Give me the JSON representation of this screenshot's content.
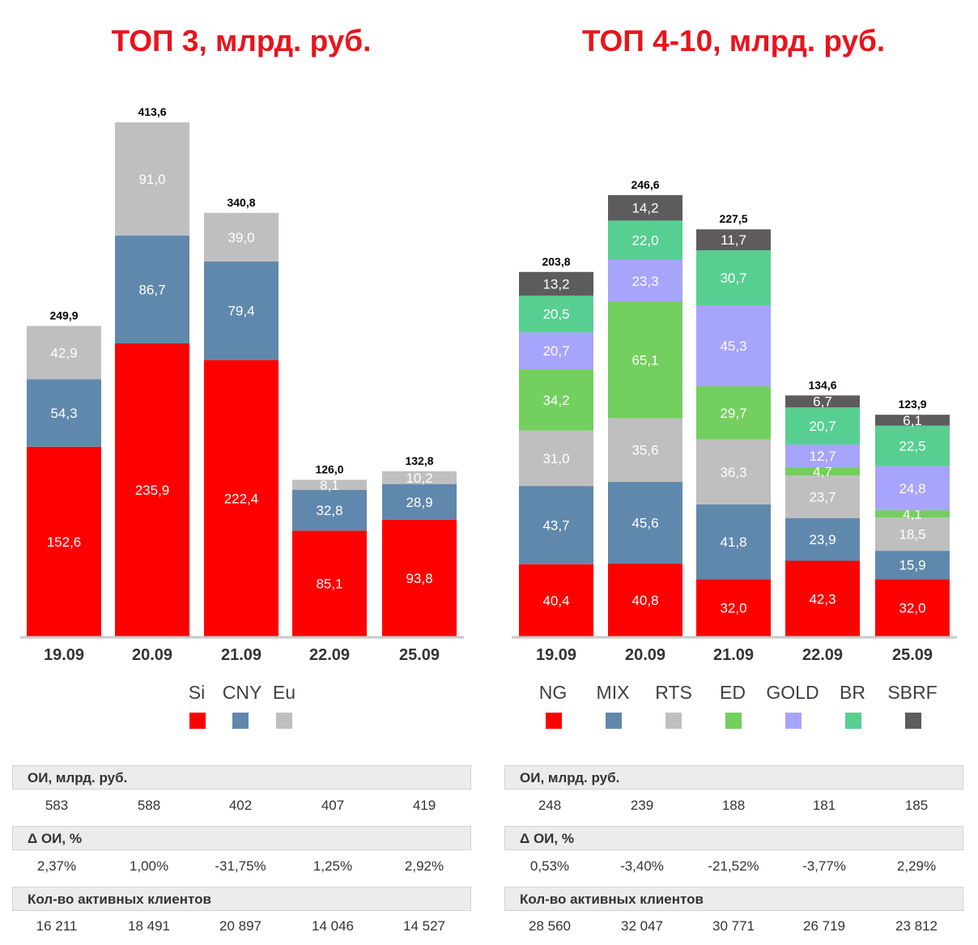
{
  "chart_data": [
    {
      "type": "bar",
      "stacked": true,
      "title": "ТОП 3, млрд. руб.",
      "categories": [
        "19.09",
        "20.09",
        "21.09",
        "22.09",
        "25.09"
      ],
      "series": [
        {
          "name": "Si",
          "color": "#ff0000",
          "values": [
            152.6,
            235.9,
            222.4,
            85.1,
            93.8
          ],
          "labels": [
            "152,6",
            "235,9",
            "222,4",
            "85,1",
            "93,8"
          ]
        },
        {
          "name": "CNY",
          "color": "#6088ad",
          "values": [
            54.3,
            86.7,
            79.4,
            32.8,
            28.9
          ],
          "labels": [
            "54,3",
            "86,7",
            "79,4",
            "32,8",
            "28,9"
          ]
        },
        {
          "name": "Eu",
          "color": "#c0bfbf",
          "values": [
            42.9,
            91.0,
            39.0,
            8.1,
            10.2
          ],
          "labels": [
            "42,9",
            "91,0",
            "39,0",
            "8,1",
            "10,2"
          ]
        }
      ],
      "totals": [
        "249,9",
        "413,6",
        "340,8",
        "126,0",
        "132,8"
      ],
      "legend_position": "bottom"
    },
    {
      "type": "bar",
      "stacked": true,
      "title": "ТОП 4-10, млрд. руб.",
      "categories": [
        "19.09",
        "20.09",
        "21.09",
        "22.09",
        "25.09"
      ],
      "series": [
        {
          "name": "NG",
          "color": "#ff0000",
          "values": [
            40.4,
            40.8,
            32.0,
            42.3,
            32.0
          ],
          "labels": [
            "40,4",
            "40,8",
            "32,0",
            "42,3",
            "32,0"
          ]
        },
        {
          "name": "MIX",
          "color": "#6088ad",
          "values": [
            43.7,
            45.6,
            41.8,
            23.9,
            15.9
          ],
          "labels": [
            "43,7",
            "45,6",
            "41,8",
            "23,9",
            "15,9"
          ]
        },
        {
          "name": "RTS",
          "color": "#c0bfbf",
          "values": [
            31.0,
            35.6,
            36.3,
            23.7,
            18.5
          ],
          "labels": [
            "31,0",
            "35,6",
            "36,3",
            "23,7",
            "18,5"
          ]
        },
        {
          "name": "ED",
          "color": "#73cf5e",
          "values": [
            34.2,
            65.1,
            29.7,
            4.7,
            4.1
          ],
          "labels": [
            "34,2",
            "65,1",
            "29,7",
            "4,7",
            "4,1"
          ]
        },
        {
          "name": "GOLD",
          "color": "#a7a4fb",
          "values": [
            20.7,
            23.3,
            45.3,
            12.7,
            24.8
          ],
          "labels": [
            "20,7",
            "23,3",
            "45,3",
            "12,7",
            "24,8"
          ]
        },
        {
          "name": "BR",
          "color": "#57cf91",
          "values": [
            20.5,
            22.0,
            30.7,
            20.7,
            22.5
          ],
          "labels": [
            "20,5",
            "22,0",
            "30,7",
            "20,7",
            "22,5"
          ]
        },
        {
          "name": "SBRF",
          "color": "#5e5b5c",
          "values": [
            13.2,
            14.2,
            11.7,
            6.7,
            6.1
          ],
          "labels": [
            "13,2",
            "14,2",
            "11,7",
            "6,7",
            "6,1"
          ]
        }
      ],
      "totals": [
        "203,8",
        "246,6",
        "227,5",
        "134,6",
        "123,9"
      ],
      "legend_position": "bottom"
    }
  ],
  "tables": [
    {
      "rows": [
        {
          "header": "ОИ, млрд. руб.",
          "values": [
            "583",
            "588",
            "402",
            "407",
            "419"
          ]
        },
        {
          "header": "Δ ОИ, %",
          "values": [
            "2,37%",
            "1,00%",
            "-31,75%",
            "1,25%",
            "2,92%"
          ]
        },
        {
          "header": "Кол-во активных клиентов",
          "values": [
            "16 211",
            "18 491",
            "20 897",
            "14 046",
            "14 527"
          ]
        }
      ]
    },
    {
      "rows": [
        {
          "header": "ОИ, млрд. руб.",
          "values": [
            "248",
            "239",
            "188",
            "181",
            "185"
          ]
        },
        {
          "header": "Δ ОИ, %",
          "values": [
            "0,53%",
            "-3,40%",
            "-21,52%",
            "-3,77%",
            "2,29%"
          ]
        },
        {
          "header": "Кол-во активных клиентов",
          "values": [
            "28 560",
            "32 047",
            "30 771",
            "26 719",
            "23 812"
          ]
        }
      ]
    }
  ]
}
